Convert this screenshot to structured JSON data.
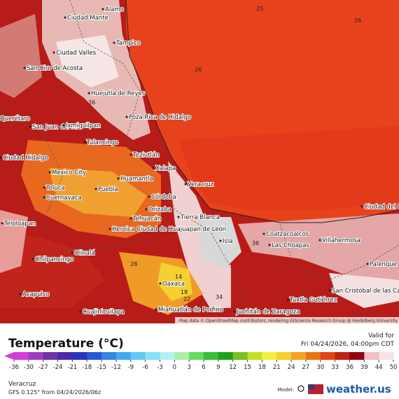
{
  "map": {
    "place_labels": [
      "Alamo",
      "Ciudad Mante",
      "Tampico",
      "Ciudad Valles",
      "San Ciro de Acosta",
      "Huejutla de Reyes",
      "Poza Rica de Hidalgo",
      "Querétaro",
      "San Juan del Río",
      "Ixmiquilpan",
      "Tulancingo",
      "Teziutlán",
      "Ciudad Hidalgo",
      "Mexico City",
      "Xalapa",
      "Veracruz",
      "Huamantla",
      "Toluca",
      "Puebla",
      "Cuernavaca",
      "Córdoba",
      "Orizaba",
      "Tierra Blanca",
      "Tehuacán",
      "Teloloapan",
      "Heroica Ciudad de Huajuapan de León",
      "Coatzacoalcos",
      "Las Choapas",
      "Villahermosa",
      "Chilpancingo",
      "Olinalá",
      "Oaxaca",
      "Acapulco",
      "Cuajinicuilapa",
      "Miahuatlán de Porfirio",
      "Juchitán de Zaragoza",
      "Tuxtla Gutiérrez",
      "San Cristóbal de las Casas",
      "Palenque",
      "Isla",
      "Ciudad del Carmen"
    ],
    "temperature_labels": [
      25,
      26,
      26,
      36,
      14,
      18,
      22,
      34,
      28,
      36
    ],
    "attribution": "Map data © OpenStreetMap contributors, rendering GIScience Research Group @ Heidelberg University"
  },
  "legend": {
    "title": "Temperature (°C)",
    "valid_label": "Valid for",
    "valid_time": "Fri 04/24/2026, 04:00pm CDT",
    "ticks": [
      -36,
      -30,
      -27,
      -24,
      -21,
      -18,
      -15,
      -12,
      -9,
      -6,
      -3,
      0,
      3,
      6,
      9,
      12,
      15,
      18,
      21,
      24,
      27,
      30,
      33,
      36,
      39,
      44,
      50
    ],
    "colors": [
      "#d23cd8",
      "#a03cc0",
      "#7030a8",
      "#4a28a8",
      "#2a34b8",
      "#2858d4",
      "#3484e4",
      "#44a8f0",
      "#64c8f4",
      "#88e0f4",
      "#aef2f2",
      "#a8f0a8",
      "#64dc64",
      "#34c034",
      "#20a020",
      "#78c020",
      "#c4e024",
      "#f4f040",
      "#f4d030",
      "#f4a424",
      "#e87414",
      "#e04414",
      "#c42014",
      "#92000e",
      "#f0c0c4",
      "#f8e2e4"
    ]
  },
  "footer": {
    "location": "Veracruz",
    "model_run": "GFS 0.125° from  04/24/2026/06z",
    "model_label": "Model:",
    "brand": "weather.us"
  }
}
